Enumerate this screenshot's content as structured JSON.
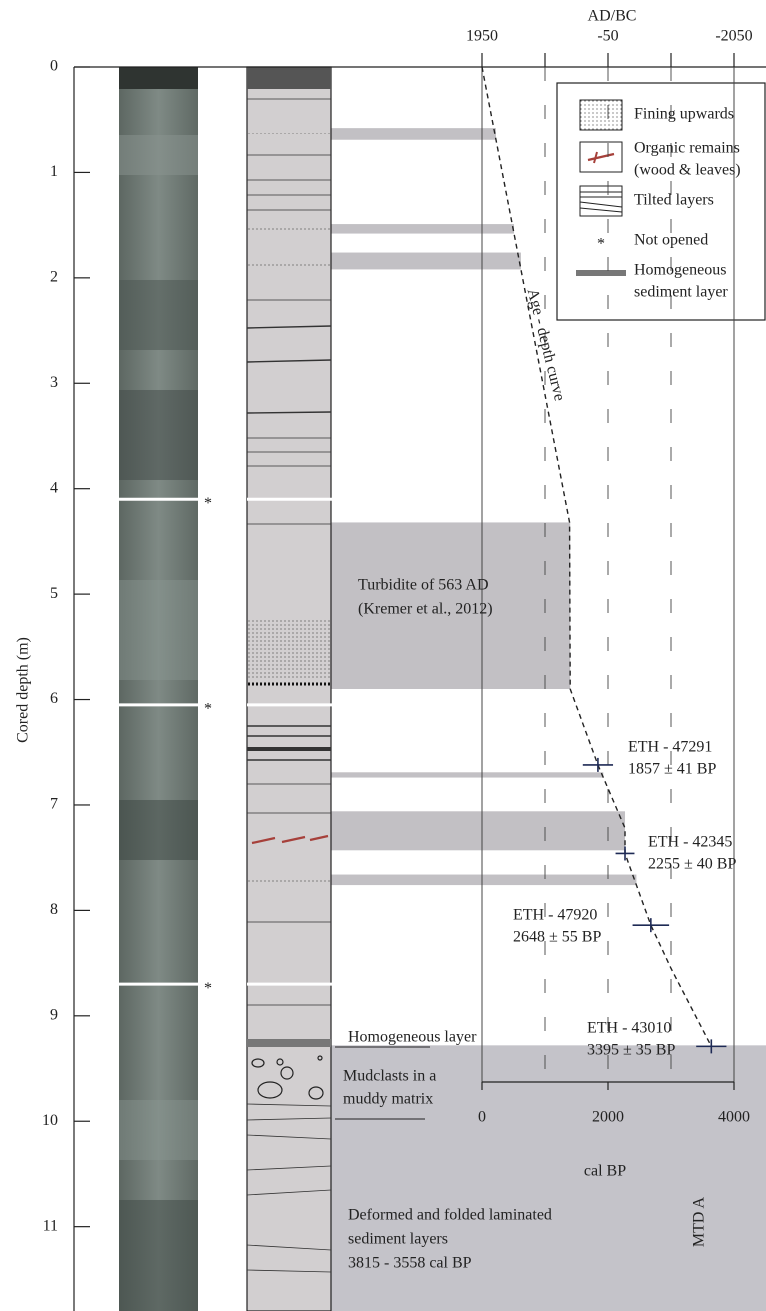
{
  "chart_data": {
    "type": "line",
    "y_label": "Cored depth (m)",
    "ylim": [
      0,
      11.8
    ],
    "yticks": [
      0,
      1,
      2,
      3,
      4,
      5,
      6,
      7,
      8,
      9,
      10,
      11
    ],
    "x_label": "cal BP",
    "x_top_label": "AD/BC",
    "xlim": [
      0,
      4000
    ],
    "xticks": [
      0,
      2000,
      4000
    ],
    "x_top_ticks": [
      {
        "value": 0,
        "label": "1950"
      },
      {
        "value": 2000,
        "label": "-50"
      },
      {
        "value": 4000,
        "label": "-2050"
      }
    ],
    "x_minor_ticks": [
      1000,
      3000
    ],
    "curve": {
      "name": "Age - depth curve",
      "color": "#222222",
      "x": [
        0,
        1390,
        1400,
        1840,
        2270,
        2270,
        2680,
        3000,
        3640
      ],
      "y": [
        0,
        4.32,
        5.9,
        6.62,
        7.22,
        7.46,
        8.14,
        8.55,
        9.29
      ]
    },
    "dates": [
      {
        "label": "ETH - 47291",
        "age_label": "1857 ± 41 BP",
        "x": 1840,
        "y": 6.62,
        "error": 240
      },
      {
        "label": "ETH - 42345",
        "age_label": "2255 ± 40 BP",
        "x": 2270,
        "y": 7.46,
        "error": 150
      },
      {
        "label": "ETH - 47920",
        "age_label": "2648 ± 55 BP",
        "x": 2680,
        "y": 8.14,
        "error": 290
      },
      {
        "label": "ETH - 43010",
        "age_label": "3395 ± 35 BP",
        "x": 3640,
        "y": 9.29,
        "error": 240
      }
    ],
    "event_layers": [
      {
        "top": 0.58,
        "bottom": 0.69
      },
      {
        "top": 1.49,
        "bottom": 1.58
      },
      {
        "top": 1.76,
        "bottom": 1.92
      },
      {
        "top": 4.32,
        "bottom": 5.9
      },
      {
        "top": 6.69,
        "bottom": 6.74
      },
      {
        "top": 7.06,
        "bottom": 7.43
      },
      {
        "top": 7.66,
        "bottom": 7.76
      }
    ],
    "layer_color": "#c2c0c4",
    "mtd": {
      "name": "MTD A",
      "top": 9.28,
      "color": "#c4c3c9"
    },
    "not_opened": [
      4.1,
      6.05,
      8.7
    ],
    "annotations": {
      "turbidite": [
        "Turbidite of 563 AD",
        "(Kremer et al., 2012)"
      ],
      "homogeneous": "Homogeneous layer",
      "mudclasts": [
        "Mudclasts in a",
        "muddy matrix"
      ],
      "deformed": [
        "Deformed and folded laminated",
        "sediment layers",
        "3815 - 3558 cal BP"
      ]
    },
    "legend": [
      {
        "name": [
          "Fining upwards"
        ]
      },
      {
        "name": [
          "Organic remains",
          "(wood & leaves)"
        ]
      },
      {
        "name": [
          "Tilted layers"
        ]
      },
      {
        "symbol": "*",
        "name": [
          "Not opened"
        ]
      },
      {
        "name": [
          "Homogeneous",
          "sediment layer"
        ]
      }
    ]
  }
}
